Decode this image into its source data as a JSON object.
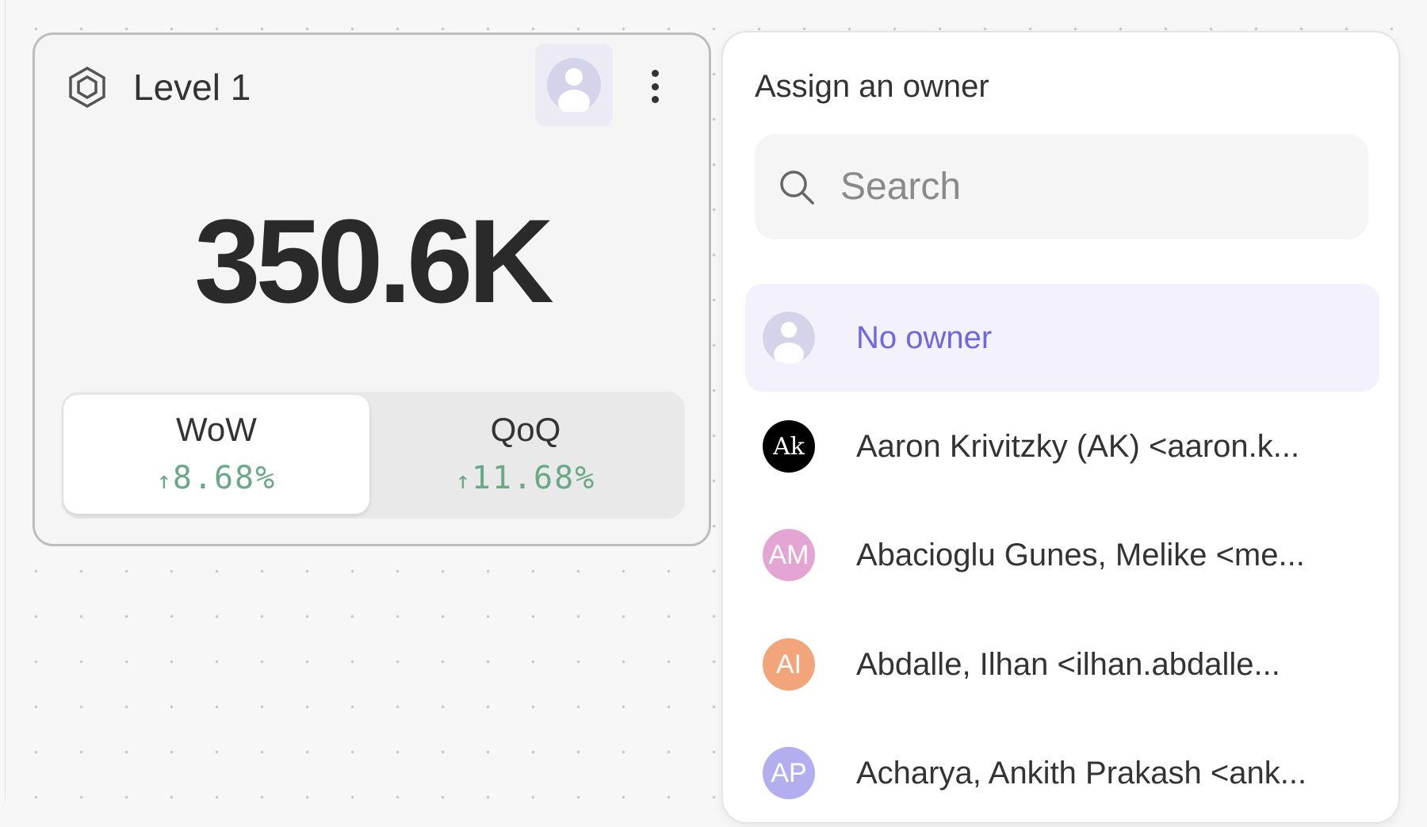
{
  "card": {
    "title": "Level 1",
    "icon": "hexagon-icon",
    "value": "350.6K",
    "comparisons": [
      {
        "label": "WoW",
        "change": "8.68%",
        "direction": "up",
        "active": true
      },
      {
        "label": "QoQ",
        "change": "11.68%",
        "direction": "up",
        "active": false
      }
    ],
    "positive_color": "#6aa987"
  },
  "owner_panel": {
    "title": "Assign an owner",
    "search_placeholder": "Search",
    "search_value": "",
    "accent_color": "#6f66e4",
    "options": [
      {
        "label": "No owner",
        "avatar": "person-icon",
        "selected": true
      },
      {
        "label": "Aaron Krivitzky (AK) <aaron.k...",
        "avatar": "Ak",
        "color": "#000000"
      },
      {
        "label": "Abacioglu Gunes, Melike <me...",
        "avatar": "AM",
        "color": "#e3a6d4"
      },
      {
        "label": "Abdalle, Ilhan <ilhan.abdalle...",
        "avatar": "AI",
        "color": "#f2a47a"
      },
      {
        "label": "Acharya, Ankith Prakash <ank...",
        "avatar": "AP",
        "color": "#b3aef0"
      }
    ]
  }
}
